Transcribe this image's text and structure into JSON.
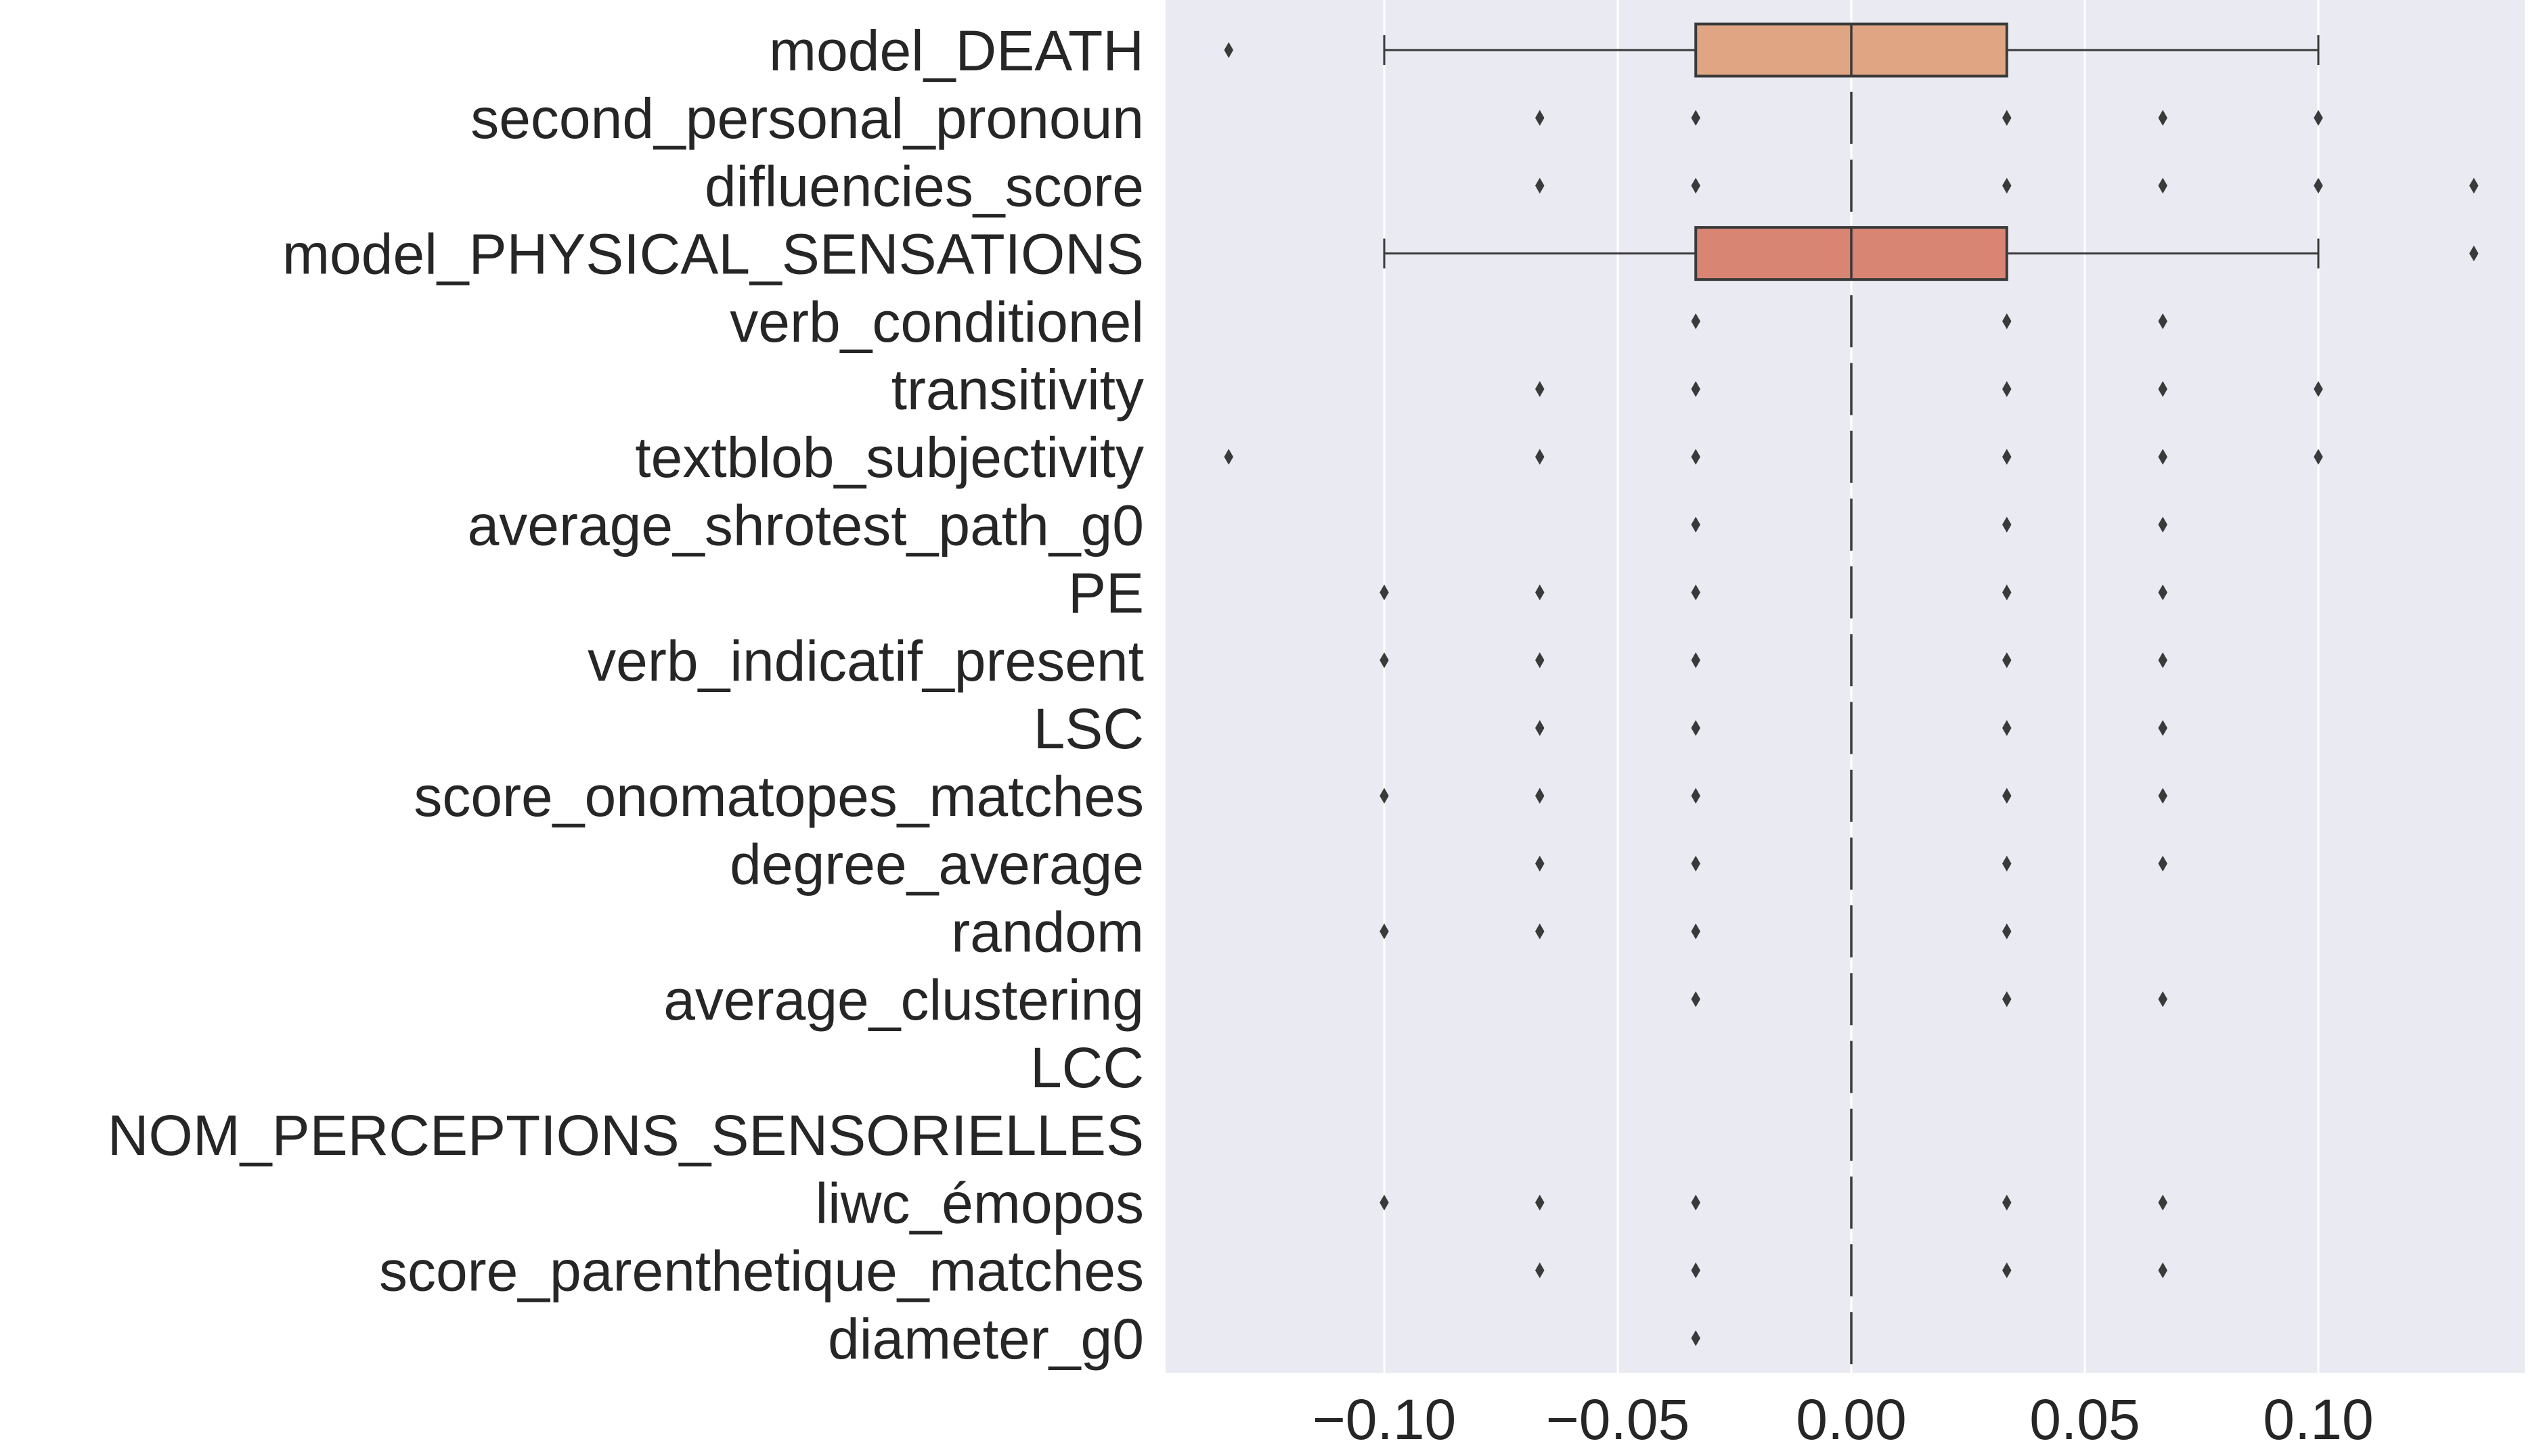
{
  "chart_data": {
    "type": "box",
    "orientation": "horizontal",
    "categories": [
      "model_DEATH",
      "second_personal_pronoun",
      "difluencies_score",
      "model_PHYSICAL_SENSATIONS",
      "verb_conditionel",
      "transitivity",
      "textblob_subjectivity",
      "average_shrotest_path_g0",
      "PE",
      "verb_indicatif_present",
      "LSC",
      "score_onomatopes_matches",
      "degree_average",
      "random",
      "average_clustering",
      "LCC",
      "NOM_PERCEPTIONS_SENSORIELLES",
      "liwc_émopos",
      "score_parenthetique_matches",
      "diameter_g0"
    ],
    "boxes": [
      {
        "q1": -0.0333,
        "median": 0.0,
        "q3": 0.0333,
        "whisker_low": -0.1,
        "whisker_high": 0.1,
        "fliers": [
          -0.1333
        ],
        "color": "#e0a683"
      },
      {
        "q1": 0.0,
        "median": 0.0,
        "q3": 0.0,
        "whisker_low": 0.0,
        "whisker_high": 0.0,
        "fliers": [
          -0.0667,
          -0.0333,
          0.0333,
          0.0667,
          0.1
        ],
        "color": null
      },
      {
        "q1": 0.0,
        "median": 0.0,
        "q3": 0.0,
        "whisker_low": 0.0,
        "whisker_high": 0.0,
        "fliers": [
          -0.0667,
          -0.0333,
          0.0333,
          0.0667,
          0.1,
          0.1333
        ],
        "color": null
      },
      {
        "q1": -0.0333,
        "median": 0.0,
        "q3": 0.0333,
        "whisker_low": -0.1,
        "whisker_high": 0.1,
        "fliers": [
          0.1333
        ],
        "color": "#d98574"
      },
      {
        "q1": 0.0,
        "median": 0.0,
        "q3": 0.0,
        "whisker_low": 0.0,
        "whisker_high": 0.0,
        "fliers": [
          -0.0333,
          0.0333,
          0.0667
        ],
        "color": null
      },
      {
        "q1": 0.0,
        "median": 0.0,
        "q3": 0.0,
        "whisker_low": 0.0,
        "whisker_high": 0.0,
        "fliers": [
          -0.0667,
          -0.0333,
          0.0333,
          0.0667,
          0.1
        ],
        "color": null
      },
      {
        "q1": 0.0,
        "median": 0.0,
        "q3": 0.0,
        "whisker_low": 0.0,
        "whisker_high": 0.0,
        "fliers": [
          -0.1333,
          -0.0667,
          -0.0333,
          0.0333,
          0.0667,
          0.1
        ],
        "color": null
      },
      {
        "q1": 0.0,
        "median": 0.0,
        "q3": 0.0,
        "whisker_low": 0.0,
        "whisker_high": 0.0,
        "fliers": [
          -0.0333,
          0.0333,
          0.0667
        ],
        "color": null
      },
      {
        "q1": 0.0,
        "median": 0.0,
        "q3": 0.0,
        "whisker_low": 0.0,
        "whisker_high": 0.0,
        "fliers": [
          -0.1,
          -0.0667,
          -0.0333,
          0.0333,
          0.0667
        ],
        "color": null
      },
      {
        "q1": 0.0,
        "median": 0.0,
        "q3": 0.0,
        "whisker_low": 0.0,
        "whisker_high": 0.0,
        "fliers": [
          -0.1,
          -0.0667,
          -0.0333,
          0.0333,
          0.0667
        ],
        "color": null
      },
      {
        "q1": 0.0,
        "median": 0.0,
        "q3": 0.0,
        "whisker_low": 0.0,
        "whisker_high": 0.0,
        "fliers": [
          -0.0667,
          -0.0333,
          0.0333,
          0.0667
        ],
        "color": null
      },
      {
        "q1": 0.0,
        "median": 0.0,
        "q3": 0.0,
        "whisker_low": 0.0,
        "whisker_high": 0.0,
        "fliers": [
          -0.1,
          -0.0667,
          -0.0333,
          0.0333,
          0.0667
        ],
        "color": null
      },
      {
        "q1": 0.0,
        "median": 0.0,
        "q3": 0.0,
        "whisker_low": 0.0,
        "whisker_high": 0.0,
        "fliers": [
          -0.0667,
          -0.0333,
          0.0333,
          0.0667
        ],
        "color": null
      },
      {
        "q1": 0.0,
        "median": 0.0,
        "q3": 0.0,
        "whisker_low": 0.0,
        "whisker_high": 0.0,
        "fliers": [
          -0.1,
          -0.0667,
          -0.0333,
          0.0333
        ],
        "color": null
      },
      {
        "q1": 0.0,
        "median": 0.0,
        "q3": 0.0,
        "whisker_low": 0.0,
        "whisker_high": 0.0,
        "fliers": [
          -0.0333,
          0.0333,
          0.0667
        ],
        "color": null
      },
      {
        "q1": 0.0,
        "median": 0.0,
        "q3": 0.0,
        "whisker_low": 0.0,
        "whisker_high": 0.0,
        "fliers": [],
        "color": null
      },
      {
        "q1": 0.0,
        "median": 0.0,
        "q3": 0.0,
        "whisker_low": 0.0,
        "whisker_high": 0.0,
        "fliers": [],
        "color": null
      },
      {
        "q1": 0.0,
        "median": 0.0,
        "q3": 0.0,
        "whisker_low": 0.0,
        "whisker_high": 0.0,
        "fliers": [
          -0.1,
          -0.0667,
          -0.0333,
          0.0333,
          0.0667
        ],
        "color": null
      },
      {
        "q1": 0.0,
        "median": 0.0,
        "q3": 0.0,
        "whisker_low": 0.0,
        "whisker_high": 0.0,
        "fliers": [
          -0.0667,
          -0.0333,
          0.0333,
          0.0667
        ],
        "color": null
      },
      {
        "q1": 0.0,
        "median": 0.0,
        "q3": 0.0,
        "whisker_low": 0.0,
        "whisker_high": 0.0,
        "fliers": [
          -0.0333
        ],
        "color": null
      }
    ],
    "x_ticks": [
      -0.1,
      -0.05,
      0.0,
      0.05,
      0.1
    ],
    "x_tick_labels": [
      "−0.10",
      "−0.05",
      "0.00",
      "0.05",
      "0.10"
    ],
    "xlim": [
      -0.147,
      0.147
    ],
    "title": "",
    "xlabel": "",
    "ylabel": "",
    "grid": true,
    "colors": {
      "background": "#eaeaf2",
      "grid": "#ffffff",
      "line": "#3a3a3a",
      "text": "#262626"
    }
  }
}
